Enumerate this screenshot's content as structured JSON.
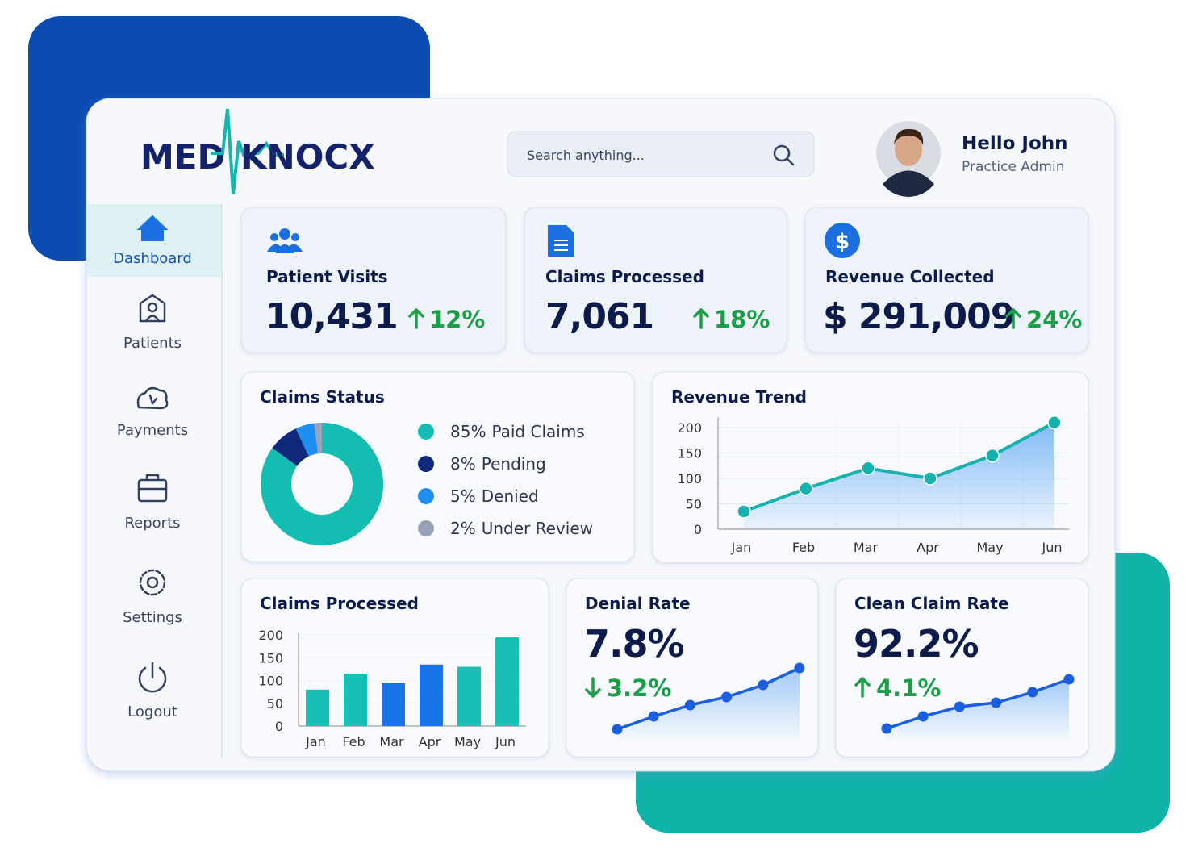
{
  "logo": {
    "left": "MED",
    "right": "KNOCX"
  },
  "search": {
    "placeholder": "Search anything..."
  },
  "user": {
    "greeting": "Hello John",
    "role": "Practice Admin"
  },
  "nav": {
    "items": [
      "Dashboard",
      "Patients",
      "Payments",
      "Reports",
      "Settings",
      "Logout"
    ],
    "active": 0
  },
  "kpis": [
    {
      "label": "Patient Visits",
      "value": "10,431",
      "change": "12%",
      "direction": "up"
    },
    {
      "label": "Claims Processed",
      "value": "7,061",
      "change": "18%",
      "direction": "up"
    },
    {
      "label": "Revenue Collected",
      "value": "$ 291,009",
      "change": "24%",
      "direction": "up"
    }
  ],
  "change_color": "#1a9e47",
  "chart_data": [
    {
      "type": "donut",
      "title": "Claims Status",
      "categories": [
        "Paid Claims",
        "Pending",
        "Denied",
        "Under Review"
      ],
      "values": [
        85,
        8,
        5,
        2
      ],
      "value_labels": [
        "85%",
        "8%",
        "5%",
        "2%"
      ],
      "colors": [
        "#14bdb2",
        "#10297a",
        "#1e8ff0",
        "#9aa3b5"
      ]
    },
    {
      "type": "line",
      "title": "Revenue Trend",
      "categories": [
        "Jan",
        "Feb",
        "Mar",
        "Apr",
        "May",
        "Jun"
      ],
      "values": [
        35,
        80,
        120,
        100,
        145,
        210
      ],
      "color": "#16b2ad",
      "area_color": "#5aa6f4",
      "ylim": [
        0,
        220
      ],
      "yticks": [
        0,
        50,
        100,
        150,
        200
      ],
      "grid": true
    },
    {
      "type": "bar",
      "title": "Claims Processed",
      "categories": [
        "Jan",
        "Feb",
        "Mar",
        "Apr",
        "May",
        "Jun"
      ],
      "values": [
        80,
        115,
        95,
        135,
        130,
        195
      ],
      "colors": [
        "#17c0b4",
        "#17c0b4",
        "#1a73e8",
        "#1a73e8",
        "#17c0b4",
        "#17c0b4"
      ],
      "ylim": [
        0,
        200
      ],
      "yticks": [
        0,
        50,
        100,
        150,
        200
      ],
      "grid": true
    },
    {
      "type": "sparkline",
      "title": "Denial Rate",
      "value": "7.8%",
      "change": "3.2%",
      "direction": "down",
      "values": [
        6,
        22,
        36,
        46,
        61,
        82
      ],
      "ylim": [
        0,
        90
      ],
      "color": "#1a5fe0"
    },
    {
      "type": "sparkline",
      "title": "Clean Claim Rate",
      "value": "92.2%",
      "change": "4.1%",
      "direction": "up",
      "values": [
        7,
        22,
        34,
        39,
        52,
        68
      ],
      "ylim": [
        0,
        90
      ],
      "color": "#1a5fe0"
    }
  ]
}
